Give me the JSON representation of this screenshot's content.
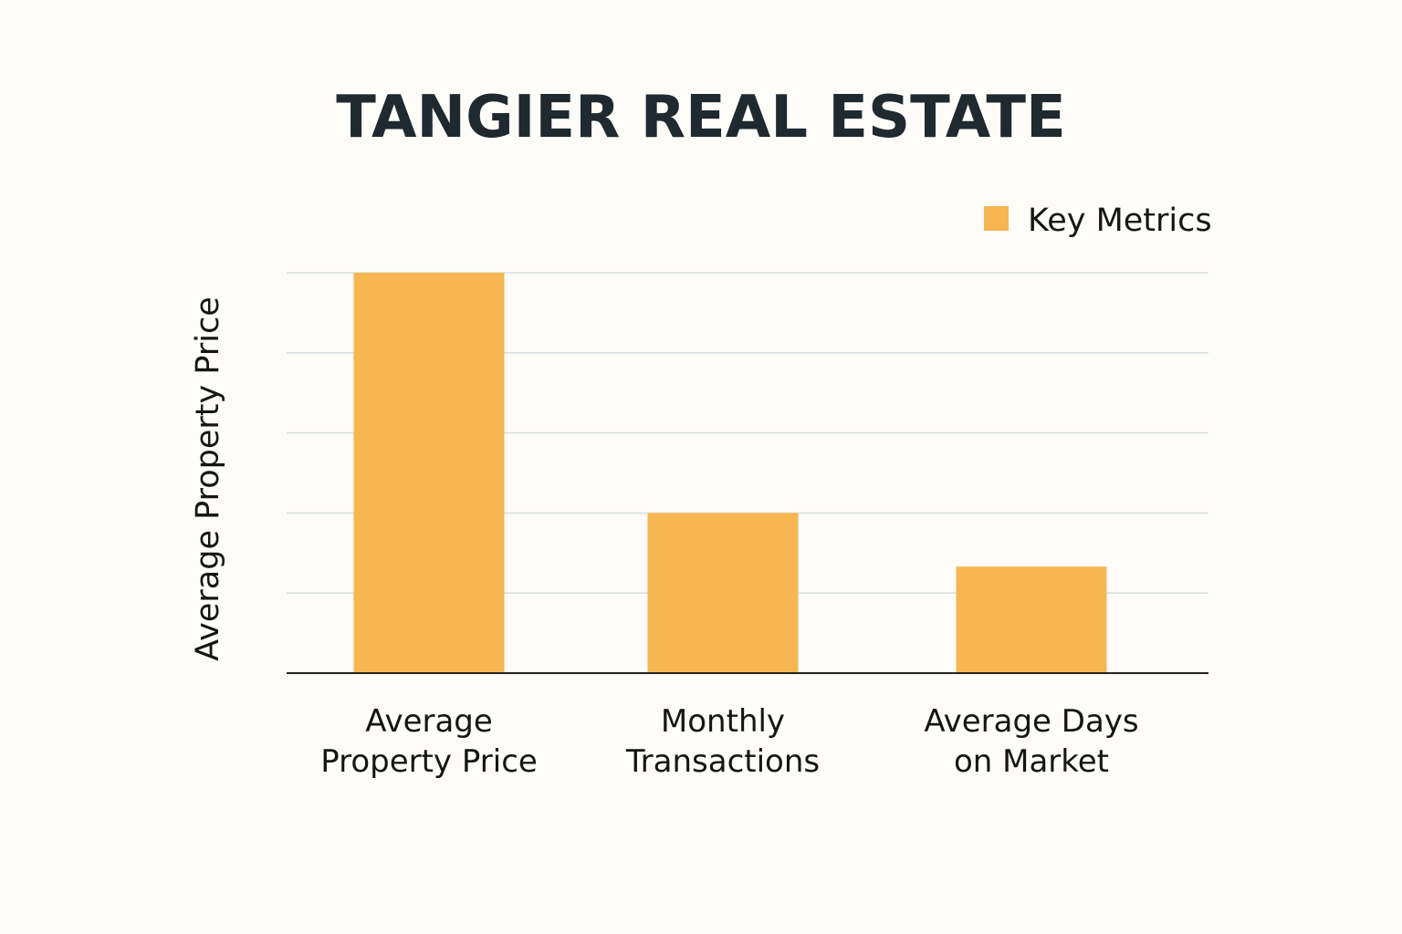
{
  "chart_data": {
    "type": "bar",
    "title": "TANGIER REAL ESTATE",
    "xlabel": "",
    "ylabel": "Average Property Price",
    "categories": [
      [
        "Average",
        "Property Price"
      ],
      [
        "Monthly",
        "Transactions"
      ],
      [
        "Average Days",
        "on Market"
      ]
    ],
    "series": [
      {
        "name": "Key Metrics",
        "values": [
          5.0,
          2.0,
          1.33
        ]
      }
    ],
    "ylim": [
      0,
      5
    ],
    "y_ticks_printed": false,
    "grid": true,
    "legend_position": "top-right",
    "bar_color": "#f7b652",
    "grid_color": "#d9e0e1",
    "axis_color": "#222222",
    "title_color": "#1e2a2f",
    "background": "#fdfcf8"
  }
}
